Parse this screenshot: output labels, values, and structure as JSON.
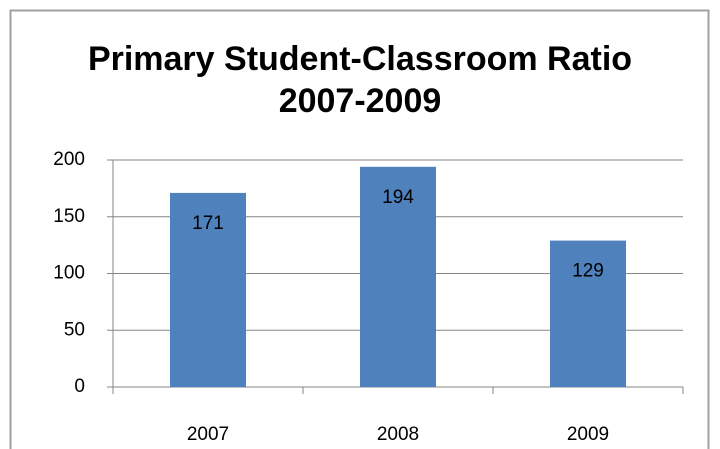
{
  "chart_data": {
    "type": "bar",
    "title": "Primary Student-Classroom Ratio 2007-2009",
    "categories": [
      "2007",
      "2008",
      "2009"
    ],
    "values": [
      171,
      194,
      129
    ],
    "color": "#4f81bd",
    "ylim": [
      0,
      200
    ],
    "yticks": [
      0,
      50,
      100,
      150,
      200
    ],
    "grid": true
  }
}
